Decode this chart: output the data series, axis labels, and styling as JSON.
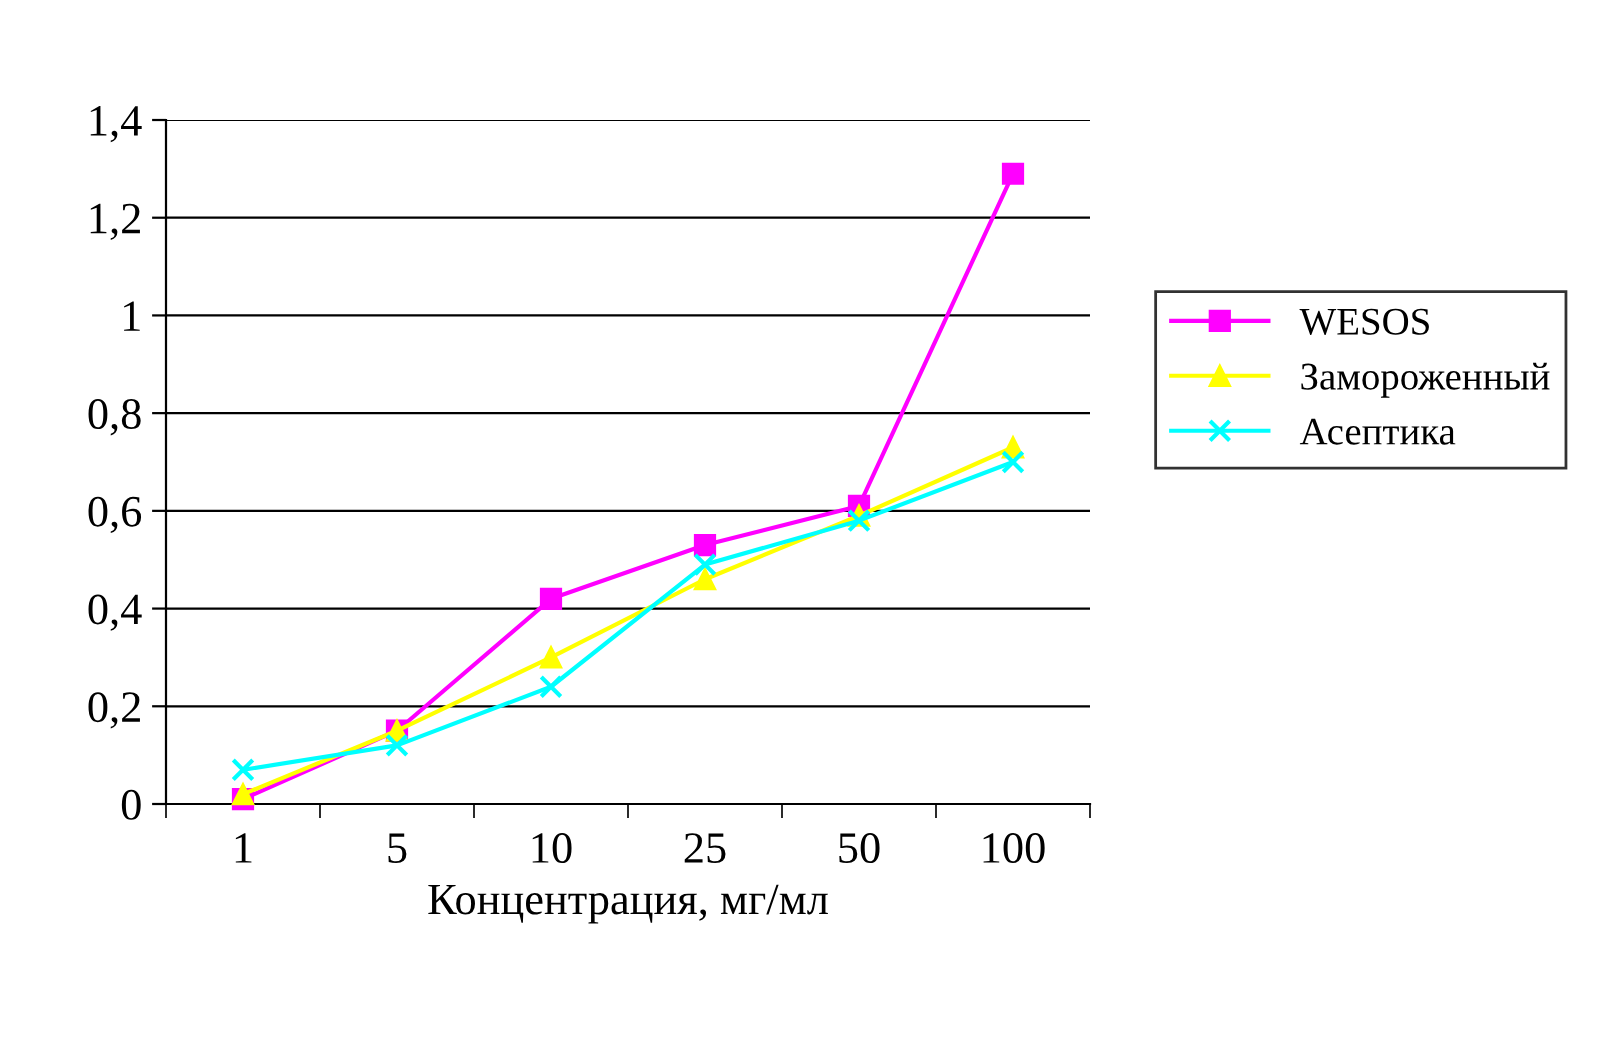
{
  "chart_data": {
    "type": "line",
    "xlabel": "Концентрация, мг/мл",
    "categories": [
      "1",
      "5",
      "10",
      "25",
      "50",
      "100"
    ],
    "series": [
      {
        "name": "WESOS",
        "color": "#ff00ff",
        "marker": "square",
        "values": [
          0.01,
          0.15,
          0.42,
          0.53,
          0.61,
          1.29
        ]
      },
      {
        "name": "Замороженный",
        "color": "#ffff00",
        "marker": "triangle",
        "values": [
          0.02,
          0.15,
          0.3,
          0.46,
          0.59,
          0.73
        ]
      },
      {
        "name": "Асептика",
        "color": "#00ffff",
        "marker": "cross",
        "values": [
          0.07,
          0.12,
          0.24,
          0.49,
          0.58,
          0.7
        ]
      }
    ],
    "ylim": [
      0,
      1.4
    ],
    "yticks": [
      0,
      {
        "value": 0.2,
        "label": "0,2"
      },
      {
        "value": 0.4,
        "label": "0,4"
      },
      {
        "value": 0.6,
        "label": "0,6"
      },
      {
        "value": 0.8,
        "label": "0,8"
      },
      1,
      {
        "value": 1.2,
        "label": "1,2"
      },
      {
        "value": 1.4,
        "label": "1,4"
      }
    ],
    "grid": "y",
    "legend": "right",
    "line_style": "solid"
  }
}
